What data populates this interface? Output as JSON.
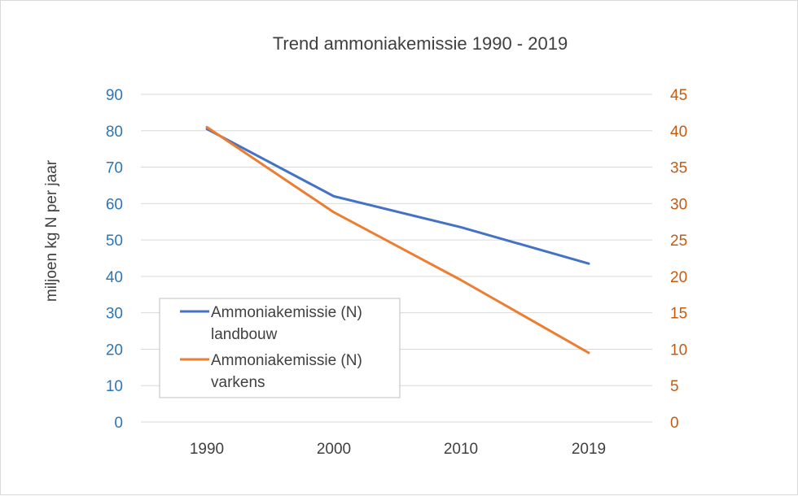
{
  "chart_data": {
    "type": "line",
    "title": "Trend ammoniakemissie 1990 - 2019",
    "ylabel": "miljoen kg N per jaar",
    "x": [
      "1990",
      "2000",
      "2010",
      "2019"
    ],
    "y_left": {
      "ylim": [
        0,
        90
      ],
      "ticks": [
        "0",
        "10",
        "20",
        "30",
        "40",
        "50",
        "60",
        "70",
        "80",
        "90"
      ],
      "color": "#2e75b6"
    },
    "y_right": {
      "ylim": [
        0,
        45
      ],
      "ticks": [
        "0",
        "5",
        "10",
        "15",
        "20",
        "25",
        "30",
        "35",
        "40",
        "45"
      ],
      "color": "#c55a11"
    },
    "grid": true,
    "legend_position": "lower-left",
    "series": [
      {
        "label_line1": "Ammoniakemissie (N)",
        "label_line2": "landbouw",
        "axis": "left",
        "color": "#4472c4",
        "values": [
          80.5,
          62,
          53.5,
          43.5
        ]
      },
      {
        "label_line1": "Ammoniakemissie (N)",
        "label_line2": "varkens",
        "axis": "right",
        "color": "#ed7d31",
        "values": [
          40.5,
          28.8,
          19.5,
          9.5
        ]
      }
    ]
  }
}
